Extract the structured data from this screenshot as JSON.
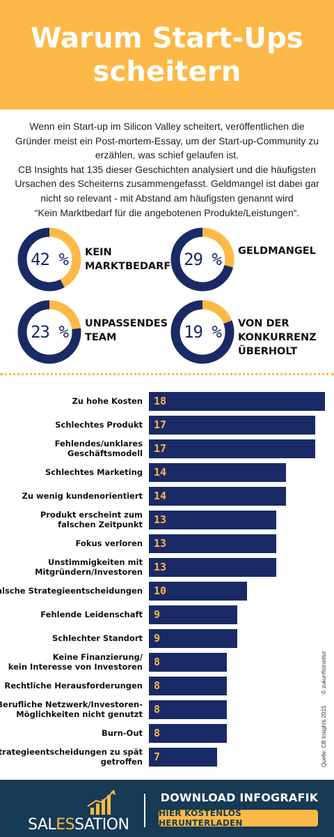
{
  "header": {
    "title_lines": [
      "Warum Start-Ups",
      "scheitern"
    ]
  },
  "intro": {
    "lines": [
      "Wenn ein Start-up im Silicon Valley scheitert, veröffentlichen die",
      "Gründer meist ein Post-mortem-Essay, um der Start-up-Community zu",
      "erzählen, was schief gelaufen ist.",
      "CB Insights hat 135 dieser Geschichten analysiert und die häufigsten",
      "Ursachen des Scheiterns zusammengefasst. Geldmangel ist dabei gar",
      "nicht so relevant - mit Abstand am häufigsten genannt wird",
      "“Kein Marktbedarf für die angebotenen Produkte/Leistungen“."
    ]
  },
  "stats": [
    {
      "value": 42,
      "label": "42 %",
      "label_lines": [
        "KEIN",
        "MARKTBEDARF"
      ]
    },
    {
      "value": 29,
      "label": "29 %",
      "label_lines": [
        "GELDMANGEL"
      ]
    },
    {
      "value": 23,
      "label": "23 %",
      "label_lines": [
        "UNPASSENDES",
        "TEAM"
      ]
    },
    {
      "value": 19,
      "label": "19 %",
      "label_lines": [
        "VON DER",
        "KONKURRENZ",
        "ÜBERHOLT"
      ]
    }
  ],
  "colors": {
    "accent": "#fdb947",
    "navy": "#1a2a66",
    "footer": "#173a55"
  },
  "chart_data": {
    "type": "bar",
    "orientation": "horizontal",
    "categories": [
      "Zu hohe Kosten",
      "Schlechtes Produkt",
      "Fehlendes/unklares Geschäftsmodell",
      "Schlechtes Marketing",
      "Zu wenig kundenorientiert",
      "Produkt erscheint zum falschen Zeitpunkt",
      "Fokus verloren",
      "Unstimmigkeiten mit Mitgründern/Investoren",
      "Falsche Strategieentscheidungen",
      "Fehlende Leidenschaft",
      "Schlechter Standort",
      "Keine Finanzierung/ kein Interesse von Investoren",
      "Rechtliche Herausforderungen",
      "Berufliche Netzwerk/Investoren-Möglichkeiten nicht genutzt",
      "Burn-Out",
      "Strategieentscheidungen zu spät getroffen"
    ],
    "category_lines": [
      [
        "Zu hohe Kosten"
      ],
      [
        "Schlechtes Produkt"
      ],
      [
        "Fehlendes/unklares",
        "Geschäftsmodell"
      ],
      [
        "Schlechtes Marketing"
      ],
      [
        "Zu wenig kundenorientiert"
      ],
      [
        "Produkt erscheint zum",
        "falschen Zeitpunkt"
      ],
      [
        "Fokus verloren"
      ],
      [
        "Unstimmigkeiten mit",
        "Mitgründern/Investoren"
      ],
      [
        "Falsche Strategieentscheidungen"
      ],
      [
        "Fehlende Leidenschaft"
      ],
      [
        "Schlechter Standort"
      ],
      [
        "Keine Finanzierung/",
        "kein Interesse von Investoren"
      ],
      [
        "Rechtliche Herausforderungen"
      ],
      [
        "Berufliche Netzwerk/Investoren-",
        "Möglichkeiten nicht genutzt"
      ],
      [
        "Burn-Out"
      ],
      [
        "Strategieentscheidungen zu spät",
        "getroffen"
      ]
    ],
    "values": [
      18,
      17,
      17,
      14,
      14,
      13,
      13,
      13,
      10,
      9,
      9,
      8,
      8,
      8,
      8,
      7
    ],
    "value_labels": [
      "18",
      "17",
      "17",
      "14",
      "14",
      "13",
      "13",
      "13",
      "10",
      "9",
      "9",
      "8",
      "8",
      "8",
      "8",
      "7"
    ],
    "xlim": [
      0,
      18
    ],
    "grid": false,
    "legend": "none"
  },
  "source": {
    "citation": "Quelle: CB Insights 2015",
    "copyright": "© zukunftsInstitut"
  },
  "footer": {
    "logo": "SALESSATION",
    "logo_parts": [
      "SAL",
      "ES",
      "SATION"
    ],
    "download_title": "DOWNLOAD INFOGRAFIK",
    "download_button": "HIER KOSTENLOS HERUNTERLADEN"
  }
}
